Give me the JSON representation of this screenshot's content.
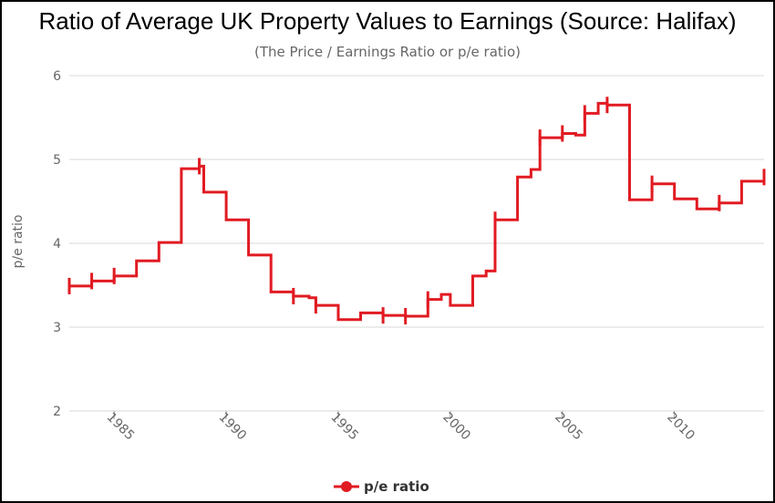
{
  "title": "Ratio of Average UK Property Values to Earnings (Source: Halifax)",
  "subtitle": "(The Price / Earnings Ratio or p/e ratio)",
  "colors": {
    "series": "#e11b22",
    "grid": "#d9d9d9",
    "axis_text": "#666666"
  },
  "chart_data": {
    "type": "line",
    "step": true,
    "title": "Ratio of Average UK Property Values to Earnings (Source: Halifax)",
    "subtitle": "(The Price / Earnings Ratio or p/e ratio)",
    "xlabel": "",
    "ylabel": "p/e ratio",
    "xlim": [
      1983,
      2014
    ],
    "ylim": [
      2,
      6
    ],
    "yticks": [
      2,
      3,
      4,
      5,
      6
    ],
    "xticks": [
      1985,
      1990,
      1995,
      2000,
      2005,
      2010
    ],
    "xtick_labels": [
      "1985",
      "1990",
      "1995",
      "2000",
      "2005",
      "2010"
    ],
    "ytick_labels": [
      "2",
      "3",
      "4",
      "5",
      "6"
    ],
    "grid": true,
    "legend": "bottom",
    "series": [
      {
        "name": "p/e ratio",
        "color": "#e11b22",
        "points": [
          [
            1983,
            3.49
          ],
          [
            1984,
            3.55
          ],
          [
            1985,
            3.61
          ],
          [
            1986,
            3.79
          ],
          [
            1987,
            4.01
          ],
          [
            1988,
            4.89
          ],
          [
            1988.8,
            4.92
          ],
          [
            1989,
            4.61
          ],
          [
            1990,
            4.28
          ],
          [
            1991,
            3.86
          ],
          [
            1992,
            3.42
          ],
          [
            1993,
            3.37
          ],
          [
            1993.7,
            3.35
          ],
          [
            1994,
            3.26
          ],
          [
            1995,
            3.09
          ],
          [
            1996,
            3.17
          ],
          [
            1997,
            3.14
          ],
          [
            1998,
            3.13
          ],
          [
            1999,
            3.33
          ],
          [
            1999.6,
            3.39
          ],
          [
            2000,
            3.26
          ],
          [
            2001,
            3.61
          ],
          [
            2001.6,
            3.67
          ],
          [
            2002,
            4.28
          ],
          [
            2003,
            4.79
          ],
          [
            2003.6,
            4.88
          ],
          [
            2004,
            5.26
          ],
          [
            2005,
            5.31
          ],
          [
            2005.6,
            5.29
          ],
          [
            2006,
            5.55
          ],
          [
            2006.6,
            5.67
          ],
          [
            2007,
            5.65
          ],
          [
            2008,
            4.52
          ],
          [
            2009,
            4.71
          ],
          [
            2010,
            4.53
          ],
          [
            2011,
            4.41
          ],
          [
            2012,
            4.48
          ],
          [
            2013,
            4.74
          ],
          [
            2014,
            4.79
          ]
        ],
        "markers_at": [
          1983,
          1984,
          1985,
          1988.8,
          1993,
          1994,
          1997,
          1998,
          1999,
          2002,
          2004,
          2005,
          2006,
          2007,
          2009,
          2012,
          2014
        ]
      }
    ]
  }
}
